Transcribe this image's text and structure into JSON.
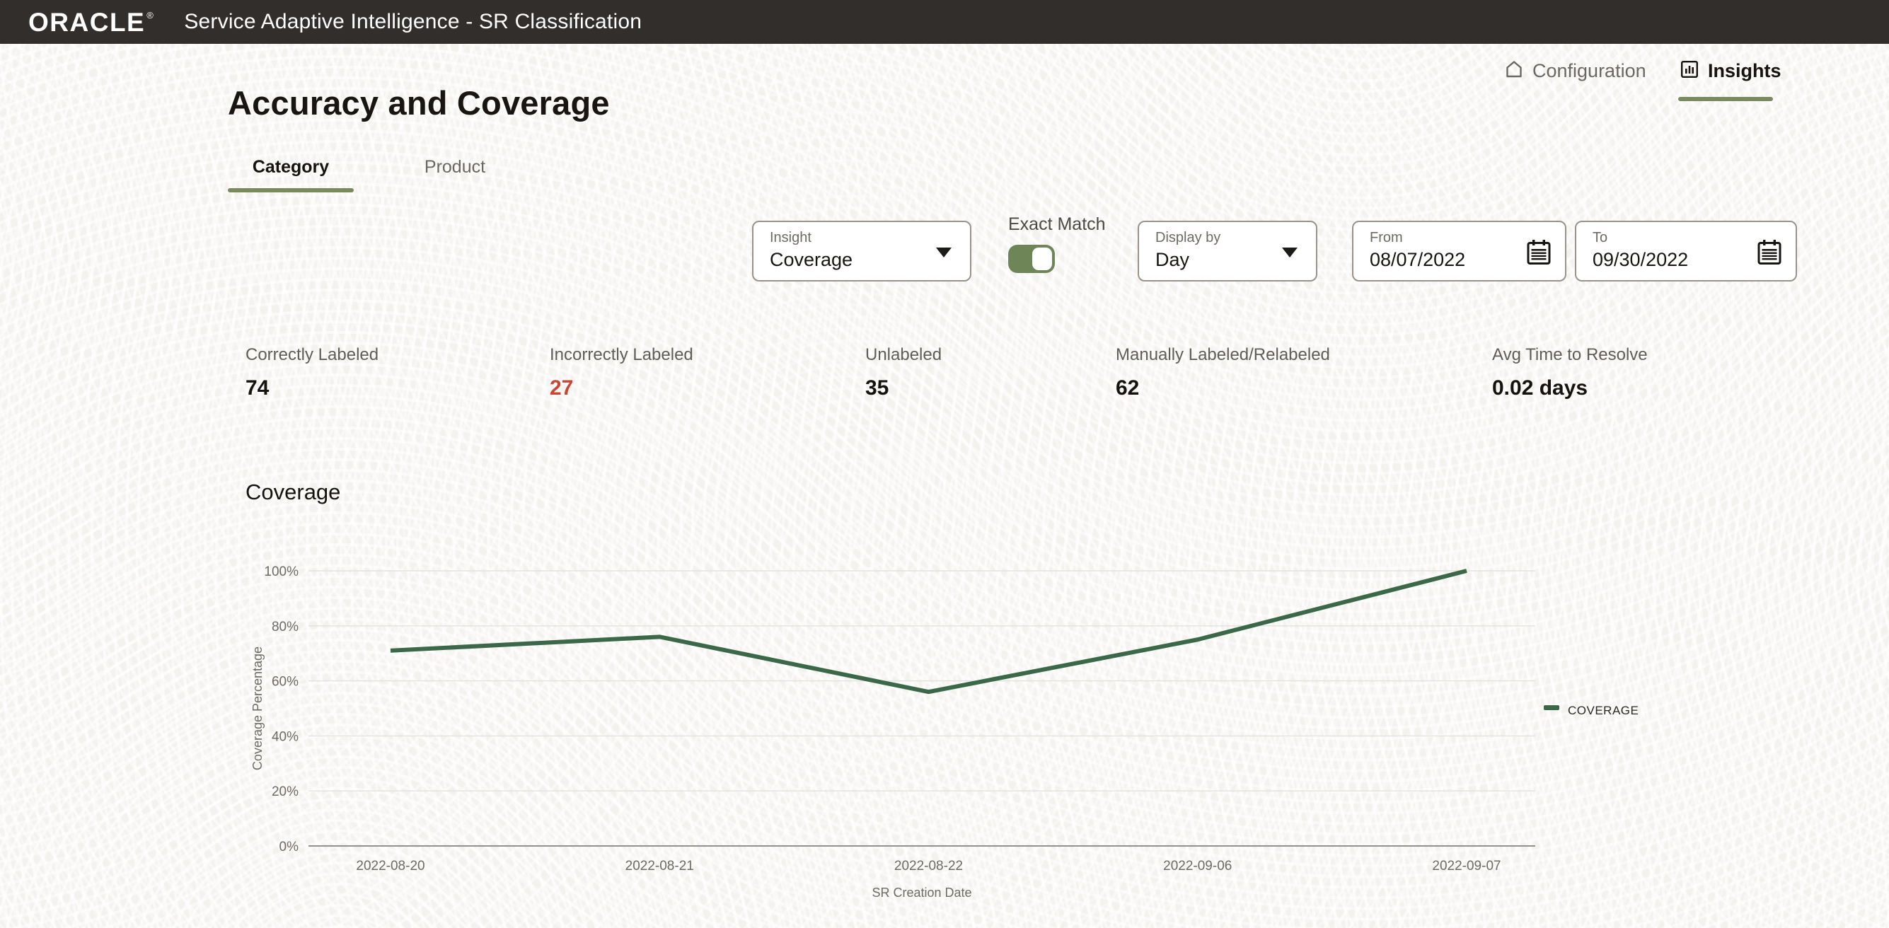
{
  "header": {
    "brand": "ORACLE",
    "registered": "®",
    "title": "Service Adaptive Intelligence - SR Classification"
  },
  "nav": {
    "configuration": "Configuration",
    "insights": "Insights"
  },
  "page": {
    "title": "Accuracy and Coverage"
  },
  "tabs": [
    {
      "label": "Category",
      "active": true
    },
    {
      "label": "Product",
      "active": false
    }
  ],
  "controls": {
    "insight": {
      "label": "Insight",
      "value": "Coverage"
    },
    "exact_match": {
      "label": "Exact Match",
      "on": true
    },
    "display_by": {
      "label": "Display by",
      "value": "Day"
    },
    "from": {
      "label": "From",
      "value": "08/07/2022"
    },
    "to": {
      "label": "To",
      "value": "09/30/2022"
    }
  },
  "stats": [
    {
      "label": "Correctly Labeled",
      "value": "74",
      "color": "#16130f"
    },
    {
      "label": "Incorrectly Labeled",
      "value": "27",
      "color": "#c74634"
    },
    {
      "label": "Unlabeled",
      "value": "35",
      "color": "#16130f"
    },
    {
      "label": "Manually Labeled/Relabeled",
      "value": "62",
      "color": "#16130f"
    },
    {
      "label": "Avg Time to Resolve",
      "value": "0.02 days",
      "color": "#16130f"
    }
  ],
  "section": {
    "title": "Coverage"
  },
  "chart_data": {
    "type": "line",
    "title": "Coverage",
    "x": [
      "2022-08-20",
      "2022-08-21",
      "2022-08-22",
      "2022-09-06",
      "2022-09-07"
    ],
    "series": [
      {
        "name": "COVERAGE",
        "values": [
          71,
          76,
          56,
          75,
          100
        ]
      }
    ],
    "xlabel": "SR Creation Date",
    "ylabel": "Coverage Percentage",
    "ylim": [
      0,
      100
    ],
    "yticks": [
      "0%",
      "20%",
      "40%",
      "60%",
      "80%",
      "100%"
    ],
    "grid": true,
    "legend_position": "right",
    "line_color": "#3a6849",
    "gridline_color": "#e5e2de",
    "axisline_color": "#94908a",
    "tick_color": "#6e6a64"
  },
  "icons": {
    "configuration": "home-icon",
    "insights": "bar-chart-icon",
    "dropdown": "chevron-down-icon",
    "date": "calendar-icon"
  },
  "colors": {
    "header_bg": "#322e2b",
    "accent_green": "#7a8a5f",
    "toggle_green": "#6e8657",
    "line_green": "#3a6849",
    "negative_red": "#c74634"
  }
}
